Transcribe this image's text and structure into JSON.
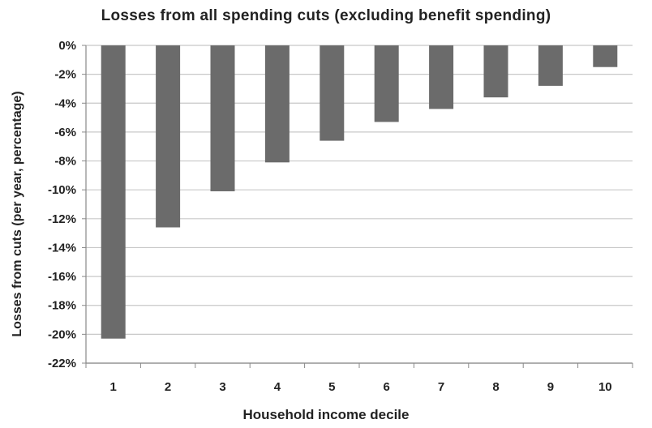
{
  "chart_data": {
    "type": "bar",
    "title": "Losses from all spending cuts (excluding benefit spending)",
    "xlabel": "Household income decile",
    "ylabel": "Losses from cuts (per year, percentage)",
    "categories": [
      "1",
      "2",
      "3",
      "4",
      "5",
      "6",
      "7",
      "8",
      "9",
      "10"
    ],
    "values": [
      -20.3,
      -12.6,
      -10.1,
      -8.1,
      -6.6,
      -5.3,
      -4.4,
      -3.6,
      -2.8,
      -1.5
    ],
    "ylim": [
      -22,
      0
    ],
    "yticks": [
      0,
      -2,
      -4,
      -6,
      -8,
      -10,
      -12,
      -14,
      -16,
      -18,
      -20,
      -22
    ],
    "ytick_labels": [
      "0%",
      "-2%",
      "-4%",
      "-6%",
      "-8%",
      "-10%",
      "-12%",
      "-14%",
      "-16%",
      "-18%",
      "-20%",
      "-22%"
    ],
    "grid": true,
    "legend": "none",
    "bar_color": "#6b6b6b",
    "grid_color": "#c8c8c8"
  }
}
